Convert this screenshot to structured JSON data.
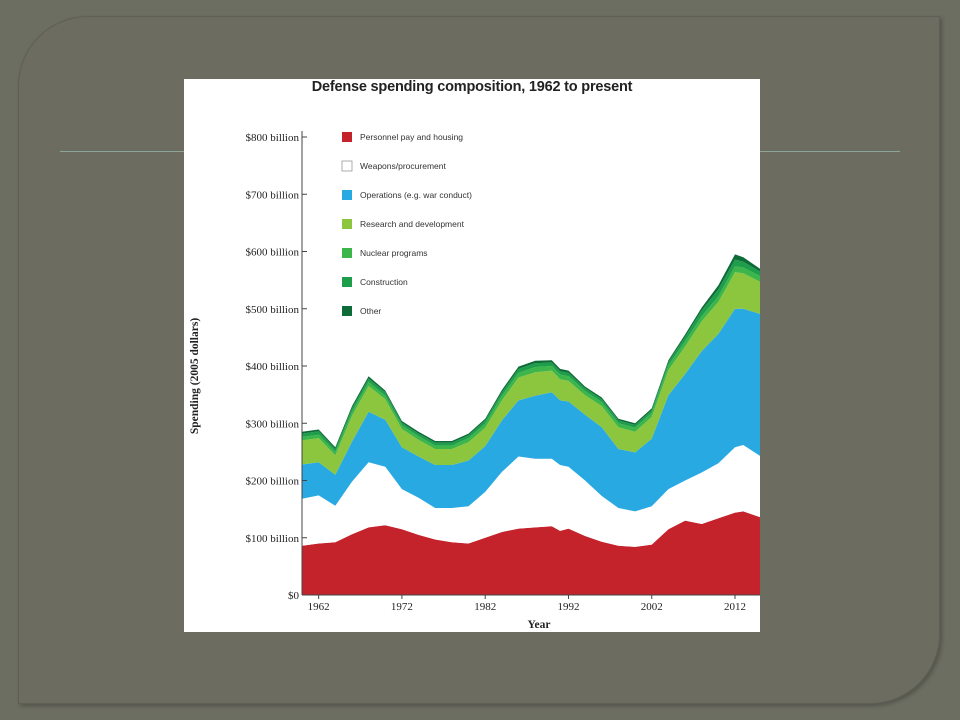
{
  "chart_data": {
    "type": "area",
    "title": "Defense spending composition, 1962 to present",
    "xlabel": "Year",
    "ylabel": "Spending (2005 dollars)",
    "ylim": [
      0,
      800
    ],
    "xlim": [
      1960,
      2015
    ],
    "x_ticks": [
      1962,
      1972,
      1982,
      1992,
      2002,
      2012
    ],
    "y_ticks": [
      {
        "value": 0,
        "label": "$0"
      },
      {
        "value": 100,
        "label": "$100 billion"
      },
      {
        "value": 200,
        "label": "$200 billion"
      },
      {
        "value": 300,
        "label": "$300 billion"
      },
      {
        "value": 400,
        "label": "$400 billion"
      },
      {
        "value": 500,
        "label": "$500 billion"
      },
      {
        "value": 600,
        "label": "$600 billion"
      },
      {
        "value": 700,
        "label": "$700 billion"
      },
      {
        "value": 800,
        "label": "$800 billion"
      }
    ],
    "x": [
      1960,
      1962,
      1964,
      1966,
      1968,
      1970,
      1972,
      1974,
      1976,
      1978,
      1980,
      1982,
      1984,
      1986,
      1988,
      1990,
      1991,
      1992,
      1994,
      1996,
      1998,
      2000,
      2002,
      2004,
      2006,
      2008,
      2010,
      2012,
      2013,
      2015
    ],
    "stacked": true,
    "series": [
      {
        "name": "Personnel pay and housing",
        "color": "#c4232b",
        "values": [
          86,
          90,
          92,
          106,
          118,
          122,
          115,
          105,
          97,
          92,
          90,
          100,
          110,
          116,
          118,
          120,
          112,
          116,
          103,
          93,
          86,
          84,
          88,
          115,
          130,
          124,
          134,
          144,
          146,
          136
        ]
      },
      {
        "name": "Weapons/procurement",
        "color": "#ffffff",
        "values": [
          82,
          84,
          64,
          92,
          114,
          102,
          70,
          65,
          55,
          60,
          65,
          80,
          105,
          126,
          120,
          118,
          115,
          108,
          97,
          80,
          66,
          62,
          67,
          70,
          70,
          90,
          96,
          114,
          116,
          107
        ]
      },
      {
        "name": "Operations (e.g. war conduct)",
        "color": "#29a9e1",
        "values": [
          60,
          58,
          54,
          70,
          88,
          82,
          73,
          72,
          75,
          75,
          80,
          80,
          90,
          98,
          110,
          116,
          113,
          114,
          115,
          120,
          103,
          103,
          118,
          164,
          186,
          212,
          226,
          242,
          238,
          248
        ]
      },
      {
        "name": "Research and development",
        "color": "#8cc63f",
        "values": [
          42,
          42,
          34,
          45,
          45,
          36,
          32,
          29,
          28,
          28,
          32,
          32,
          35,
          40,
          41,
          38,
          37,
          36,
          34,
          37,
          38,
          36,
          38,
          44,
          48,
          52,
          56,
          64,
          62,
          56
        ]
      },
      {
        "name": "Nuclear programs",
        "color": "#3cb54a",
        "values": [
          6,
          6,
          6,
          7,
          7,
          6,
          6,
          6,
          6,
          6,
          7,
          7,
          8,
          8,
          9,
          8,
          8,
          8,
          7,
          7,
          7,
          7,
          7,
          8,
          9,
          9,
          10,
          10,
          10,
          10
        ]
      },
      {
        "name": "Construction",
        "color": "#1e9e4a",
        "values": [
          6,
          6,
          5,
          6,
          6,
          6,
          5,
          5,
          5,
          5,
          5,
          6,
          6,
          7,
          7,
          6,
          6,
          6,
          5,
          5,
          5,
          5,
          5,
          6,
          8,
          10,
          12,
          12,
          10,
          8
        ]
      },
      {
        "name": "Other",
        "color": "#0d6b37",
        "values": [
          3,
          3,
          3,
          4,
          4,
          3,
          3,
          3,
          3,
          3,
          3,
          3,
          4,
          4,
          4,
          4,
          4,
          4,
          3,
          3,
          3,
          3,
          3,
          3,
          4,
          5,
          7,
          9,
          8,
          5
        ]
      }
    ],
    "legend_position": "top-left",
    "grid": false
  }
}
